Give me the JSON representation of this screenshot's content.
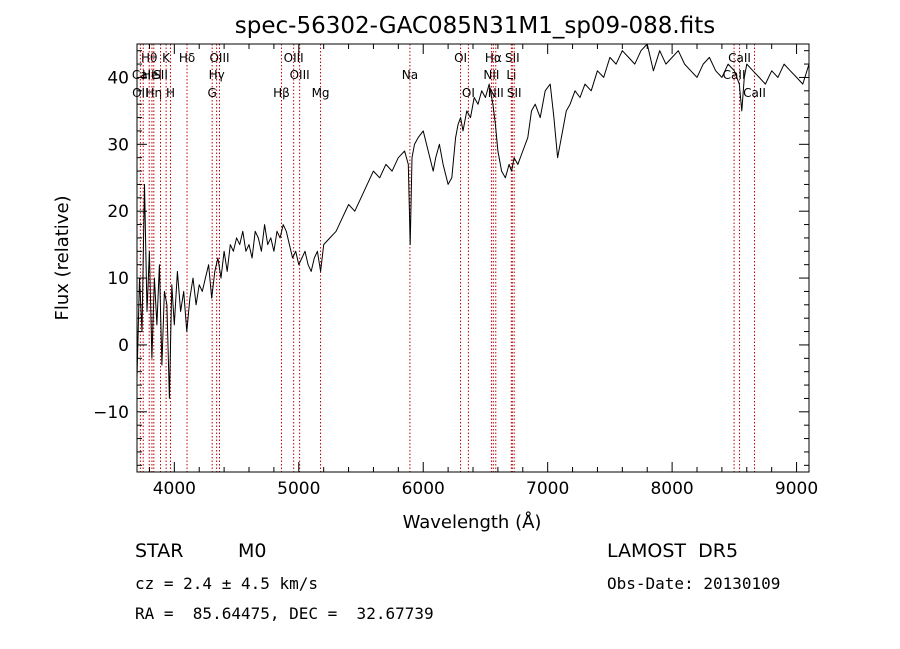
{
  "chart_data": {
    "type": "line",
    "title": "spec-56302-GAC085N31M1_sp09-088.fits",
    "xlabel": "Wavelength (Å)",
    "ylabel": "Flux (relative)",
    "xlim": [
      3700,
      9100
    ],
    "ylim": [
      -19,
      45
    ],
    "xticks": [
      4000,
      5000,
      6000,
      7000,
      8000,
      9000
    ],
    "yticks": [
      -10,
      0,
      10,
      20,
      30,
      40
    ],
    "grid": false,
    "series": [
      {
        "color": "#000000",
        "x": [
          3700,
          3720,
          3740,
          3760,
          3780,
          3800,
          3820,
          3840,
          3860,
          3880,
          3900,
          3920,
          3940,
          3960,
          3980,
          4000,
          4025,
          4050,
          4075,
          4100,
          4125,
          4150,
          4175,
          4200,
          4225,
          4250,
          4275,
          4300,
          4325,
          4350,
          4375,
          4400,
          4425,
          4450,
          4475,
          4500,
          4525,
          4550,
          4575,
          4600,
          4625,
          4650,
          4675,
          4700,
          4725,
          4750,
          4775,
          4800,
          4825,
          4850,
          4875,
          4900,
          4925,
          4950,
          4975,
          5000,
          5025,
          5050,
          5075,
          5100,
          5125,
          5150,
          5175,
          5200,
          5250,
          5300,
          5350,
          5400,
          5450,
          5500,
          5550,
          5600,
          5650,
          5700,
          5750,
          5800,
          5850,
          5880,
          5895,
          5910,
          5930,
          5960,
          6000,
          6040,
          6080,
          6100,
          6130,
          6160,
          6200,
          6230,
          6260,
          6280,
          6300,
          6320,
          6350,
          6380,
          6410,
          6440,
          6470,
          6500,
          6530,
          6560,
          6580,
          6600,
          6630,
          6660,
          6690,
          6710,
          6730,
          6760,
          6800,
          6840,
          6870,
          6900,
          6940,
          6980,
          7020,
          7050,
          7080,
          7120,
          7150,
          7180,
          7220,
          7260,
          7300,
          7350,
          7400,
          7450,
          7500,
          7550,
          7600,
          7650,
          7700,
          7750,
          7800,
          7850,
          7900,
          7950,
          8000,
          8050,
          8100,
          8150,
          8200,
          8250,
          8300,
          8350,
          8400,
          8450,
          8500,
          8540,
          8560,
          8580,
          8600,
          8650,
          8700,
          8750,
          8800,
          8850,
          8900,
          8950,
          9000,
          9050,
          9100
        ],
        "y": [
          -5,
          10,
          2,
          24,
          5,
          14,
          -2,
          10,
          3,
          12,
          -3,
          8,
          6,
          -8,
          9,
          3,
          11,
          5,
          8,
          2,
          7,
          10,
          6,
          9,
          8,
          10,
          12,
          7,
          11,
          13,
          10,
          14,
          11,
          15,
          14,
          16,
          15,
          17,
          14,
          15,
          13,
          17,
          16,
          14,
          18,
          15,
          16,
          14,
          17,
          16,
          18,
          17,
          15,
          13,
          14,
          12,
          13,
          14,
          12,
          11,
          13,
          14,
          11,
          15,
          16,
          17,
          19,
          21,
          20,
          22,
          24,
          26,
          25,
          27,
          26,
          28,
          29,
          27,
          15,
          28,
          30,
          31,
          32,
          29,
          26,
          28,
          30,
          27,
          24,
          25,
          31,
          33,
          34,
          32,
          35,
          34,
          37,
          36,
          38,
          37,
          39,
          36,
          33,
          29,
          26,
          25,
          27,
          26,
          28,
          27,
          29,
          31,
          35,
          36,
          34,
          38,
          39,
          34,
          28,
          32,
          35,
          36,
          38,
          37,
          39,
          38,
          41,
          40,
          43,
          42,
          44,
          43,
          42,
          44,
          45,
          41,
          44,
          42,
          43,
          44,
          42,
          41,
          40,
          42,
          43,
          41,
          40,
          42,
          41,
          39,
          35,
          40,
          42,
          41,
          40,
          39,
          41,
          40,
          42,
          41,
          40,
          39,
          42
        ]
      }
    ],
    "lines": [
      {
        "label": "Hθ",
        "x": 3798,
        "row": 1
      },
      {
        "label": "CaII",
        "x": 3750,
        "row": 2
      },
      {
        "label": "HeI",
        "x": 3820,
        "row": 2
      },
      {
        "label": "OII",
        "x": 3727,
        "row": 3
      },
      {
        "label": "Hη",
        "x": 3835,
        "row": 3
      },
      {
        "label": "K",
        "x": 3934,
        "row": 1
      },
      {
        "label": "SII",
        "x": 3889,
        "row": 2
      },
      {
        "label": "H",
        "x": 3969,
        "row": 3
      },
      {
        "label": "Hδ",
        "x": 4102,
        "row": 1
      },
      {
        "label": "OIII",
        "x": 4363,
        "row": 1
      },
      {
        "label": "Hγ",
        "x": 4340,
        "row": 2
      },
      {
        "label": "G",
        "x": 4304,
        "row": 3
      },
      {
        "label": "Hβ",
        "x": 4861,
        "row": 3
      },
      {
        "label": "OIII",
        "x": 4959,
        "row": 1
      },
      {
        "label": "OIII",
        "x": 5007,
        "row": 2
      },
      {
        "label": "Mg",
        "x": 5175,
        "row": 3
      },
      {
        "label": "Na",
        "x": 5893,
        "row": 2
      },
      {
        "label": "OI",
        "x": 6300,
        "row": 1
      },
      {
        "label": "OI",
        "x": 6363,
        "row": 3
      },
      {
        "label": "Hα",
        "x": 6563,
        "row": 1
      },
      {
        "label": "NII",
        "x": 6548,
        "row": 2
      },
      {
        "label": "NII",
        "x": 6583,
        "row": 3
      },
      {
        "label": "SII",
        "x": 6716,
        "row": 1
      },
      {
        "label": "Li",
        "x": 6708,
        "row": 2
      },
      {
        "label": "SII",
        "x": 6731,
        "row": 3
      },
      {
        "label": "CaII",
        "x": 8542,
        "row": 1
      },
      {
        "label": "CaII",
        "x": 8498,
        "row": 2
      },
      {
        "label": "CaII",
        "x": 8662,
        "row": 3
      }
    ]
  },
  "info": {
    "object_class": "STAR",
    "subclass": "M0",
    "survey": "LAMOST  DR5",
    "redshift": "cz = 2.4 ± 4.5 km/s",
    "obs_date": "Obs-Date: 20130109",
    "coords": "RA =  85.64475, DEC =  32.67739"
  }
}
